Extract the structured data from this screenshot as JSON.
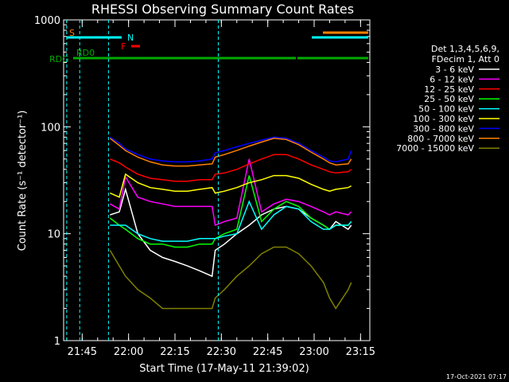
{
  "chart_data": {
    "type": "line",
    "title": "RHESSI Observing Summary Count Rates",
    "xlabel": "Start Time (17-May-11 21:39:02)",
    "ylabel": "Count Rate (s⁻¹ detector⁻¹)",
    "ylim": [
      1,
      1000
    ],
    "yscale": "log",
    "xlim_minutes": [
      0,
      99
    ],
    "x_ticks": [
      "21:45",
      "22:00",
      "22:15",
      "22:30",
      "22:45",
      "23:00",
      "23:15"
    ],
    "y_ticks": [
      "1",
      "10",
      "100",
      "1000"
    ],
    "legend_header": [
      "Det 1,3,4,5,6,9,",
      "FDecim 1, Att 0"
    ],
    "legend_placement": "right",
    "footer_date": "17-Oct-2021 07:17",
    "series": [
      {
        "name": "3 - 6 keV",
        "color": "#ffffff",
        "x": [
          15,
          18,
          20,
          24,
          28,
          32,
          36,
          40,
          44,
          48,
          49,
          52,
          56,
          60,
          64,
          68,
          72,
          76,
          80,
          84,
          86,
          88,
          92,
          93
        ],
        "y": [
          15,
          16,
          26,
          10,
          7,
          6,
          5.5,
          5,
          4.5,
          4,
          7,
          8,
          10,
          12,
          15,
          17,
          18,
          17,
          14,
          12,
          11,
          13,
          11,
          12
        ]
      },
      {
        "name": "6 - 12 keV",
        "color": "#ff00ff",
        "x": [
          15,
          18,
          20,
          24,
          28,
          32,
          36,
          40,
          44,
          48,
          49,
          52,
          56,
          60,
          64,
          68,
          72,
          76,
          80,
          84,
          86,
          88,
          92,
          93
        ],
        "y": [
          19,
          17,
          34,
          22,
          20,
          19,
          18,
          18,
          18,
          18,
          12,
          13,
          14,
          50,
          16,
          19,
          21,
          20,
          18,
          16,
          15,
          16,
          15,
          16
        ]
      },
      {
        "name": "12 - 25 keV",
        "color": "#ff0000",
        "x": [
          15,
          18,
          20,
          24,
          28,
          32,
          36,
          40,
          44,
          48,
          49,
          52,
          56,
          60,
          64,
          68,
          72,
          76,
          80,
          84,
          86,
          88,
          92,
          93
        ],
        "y": [
          50,
          46,
          42,
          36,
          33,
          32,
          31,
          31,
          32,
          32,
          36,
          37,
          40,
          45,
          50,
          55,
          55,
          50,
          44,
          40,
          38,
          37,
          38,
          40
        ]
      },
      {
        "name": "25 - 50 keV",
        "color": "#00ff00",
        "x": [
          15,
          18,
          20,
          24,
          28,
          32,
          36,
          40,
          44,
          48,
          49,
          52,
          56,
          60,
          64,
          68,
          72,
          76,
          80,
          84,
          86,
          88,
          92,
          93
        ],
        "y": [
          14,
          12,
          11,
          9,
          8,
          8,
          7.5,
          7.5,
          8,
          8,
          9,
          10,
          11,
          35,
          13,
          17,
          20,
          18,
          14,
          12,
          11,
          12,
          12,
          13
        ]
      },
      {
        "name": "50 - 100 keV",
        "color": "#00ffff",
        "x": [
          15,
          18,
          20,
          24,
          28,
          32,
          36,
          40,
          44,
          48,
          49,
          52,
          56,
          60,
          64,
          68,
          72,
          76,
          80,
          84,
          86,
          88,
          92,
          93
        ],
        "y": [
          12,
          12,
          12,
          10,
          9,
          8.5,
          8.5,
          8.5,
          9,
          9,
          9,
          9.5,
          10,
          20,
          11,
          15,
          18,
          17,
          13,
          11,
          11,
          12,
          12,
          13
        ]
      },
      {
        "name": "100 - 300 keV",
        "color": "#ffff00",
        "x": [
          15,
          18,
          20,
          24,
          28,
          32,
          36,
          40,
          44,
          48,
          49,
          52,
          56,
          60,
          64,
          68,
          72,
          76,
          80,
          84,
          86,
          88,
          92,
          93
        ],
        "y": [
          24,
          22,
          36,
          30,
          27,
          26,
          25,
          25,
          26,
          27,
          24,
          25,
          27,
          30,
          32,
          35,
          35,
          33,
          29,
          26,
          25,
          26,
          27,
          28
        ]
      },
      {
        "name": "300 - 800 keV",
        "color": "#0000ff",
        "x": [
          15,
          18,
          20,
          24,
          28,
          32,
          36,
          40,
          44,
          48,
          49,
          52,
          56,
          60,
          64,
          68,
          72,
          76,
          80,
          84,
          86,
          88,
          92,
          93
        ],
        "y": [
          80,
          70,
          62,
          55,
          50,
          48,
          47,
          47,
          48,
          50,
          57,
          60,
          65,
          70,
          75,
          80,
          78,
          70,
          60,
          52,
          48,
          47,
          50,
          60
        ]
      },
      {
        "name": "800 - 7000 keV",
        "color": "#ff8000",
        "x": [
          15,
          18,
          20,
          24,
          28,
          32,
          36,
          40,
          44,
          48,
          49,
          52,
          56,
          60,
          64,
          68,
          72,
          76,
          80,
          84,
          86,
          88,
          92,
          93
        ],
        "y": [
          78,
          67,
          60,
          52,
          47,
          44,
          43,
          43,
          44,
          45,
          52,
          55,
          60,
          66,
          72,
          78,
          76,
          68,
          58,
          50,
          46,
          44,
          45,
          50
        ]
      },
      {
        "name": "7000 - 15000 keV",
        "color": "#808000",
        "x": [
          15,
          18,
          20,
          24,
          28,
          32,
          36,
          40,
          44,
          48,
          49,
          52,
          56,
          60,
          64,
          68,
          72,
          76,
          80,
          84,
          86,
          88,
          92,
          93
        ],
        "y": [
          7,
          5,
          4,
          3,
          2.5,
          2,
          2,
          2,
          2,
          2,
          2.5,
          3,
          4,
          5,
          6.5,
          7.5,
          7.5,
          6.5,
          5,
          3.5,
          2.5,
          2,
          3,
          3.5
        ]
      }
    ],
    "annotations": [
      {
        "label": "S",
        "color": "#ff8000"
      },
      {
        "label": "N",
        "color": "#00ffff"
      },
      {
        "label": "F",
        "color": "#ff0000"
      },
      {
        "label": "RD0",
        "color": "#00aa00"
      },
      {
        "label": "RDG",
        "color": "#00aa00"
      }
    ]
  }
}
